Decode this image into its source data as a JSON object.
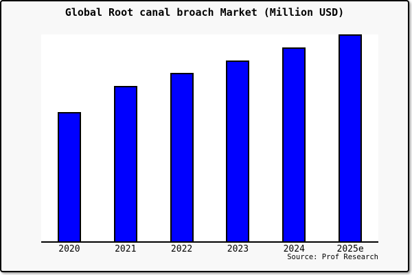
{
  "chart_data": {
    "type": "bar",
    "title": "Global Root canal broach Market (Million USD)",
    "source": "Source: Prof Research",
    "categories": [
      "2020",
      "2021",
      "2022",
      "2023",
      "2024",
      "2025e"
    ],
    "values": [
      50,
      60,
      65,
      70,
      75,
      80
    ],
    "ylim": [
      0,
      80
    ],
    "xlabel": "",
    "ylabel": "",
    "grid": false,
    "legend": false,
    "note": "y-axis has no tick labels; values estimated from relative bar heights (tallest bar touches plot top)",
    "colors": {
      "bar_fill": "#0000ff",
      "bar_edge": "#000000",
      "figure_background": "#f8f8f8",
      "plot_background": "#ffffff",
      "axis": "#000000",
      "text": "#000000",
      "border": "#000000"
    }
  }
}
